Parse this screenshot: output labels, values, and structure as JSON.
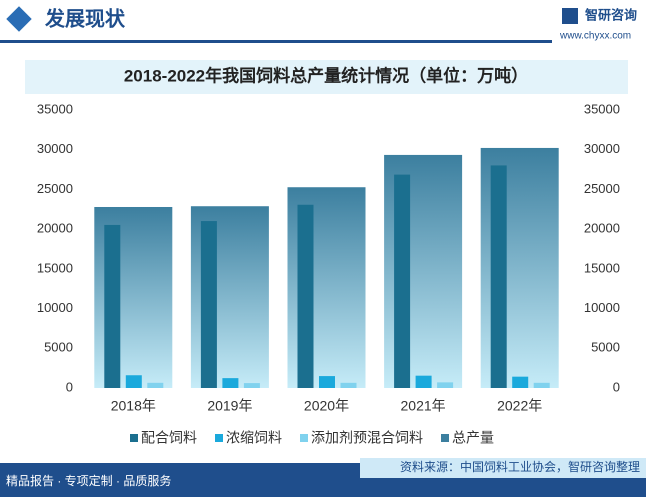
{
  "header": {
    "title": "发展现状",
    "logo": "智研咨询",
    "url": "www.chyxx.com"
  },
  "footer": {
    "slogan": "精品报告 · 专项定制 · 品质服务",
    "source": "资料来源：中国饲料工业协会，智研咨询整理"
  },
  "chart_data": {
    "type": "bar",
    "title": "2018-2022年我国饲料总产量统计情况（单位：万吨）",
    "categories": [
      "2018年",
      "2019年",
      "2020年",
      "2021年",
      "2022年"
    ],
    "series": [
      {
        "name": "配合饲料",
        "color": "#1b6f8f",
        "values": [
          20529,
          21014,
          23071,
          26866,
          28021
        ]
      },
      {
        "name": "浓缩饲料",
        "color": "#1aa9dc",
        "values": [
          1606,
          1242,
          1500,
          1551,
          1427
        ]
      },
      {
        "name": "添加剂预混合饲料",
        "color": "#80d2ee",
        "values": [
          653,
          617,
          652,
          710,
          652
        ]
      },
      {
        "name": "总产量",
        "color": "#3c7f9f",
        "values": [
          22788,
          22885,
          25276,
          29344,
          30223
        ]
      }
    ],
    "ylim": [
      0,
      35000
    ],
    "yticks": [
      0,
      5000,
      10000,
      15000,
      20000,
      25000,
      30000,
      35000
    ],
    "y2lim": [
      0,
      35000
    ],
    "y2ticks": [
      0,
      5000,
      10000,
      15000,
      20000,
      25000,
      30000,
      35000
    ]
  }
}
